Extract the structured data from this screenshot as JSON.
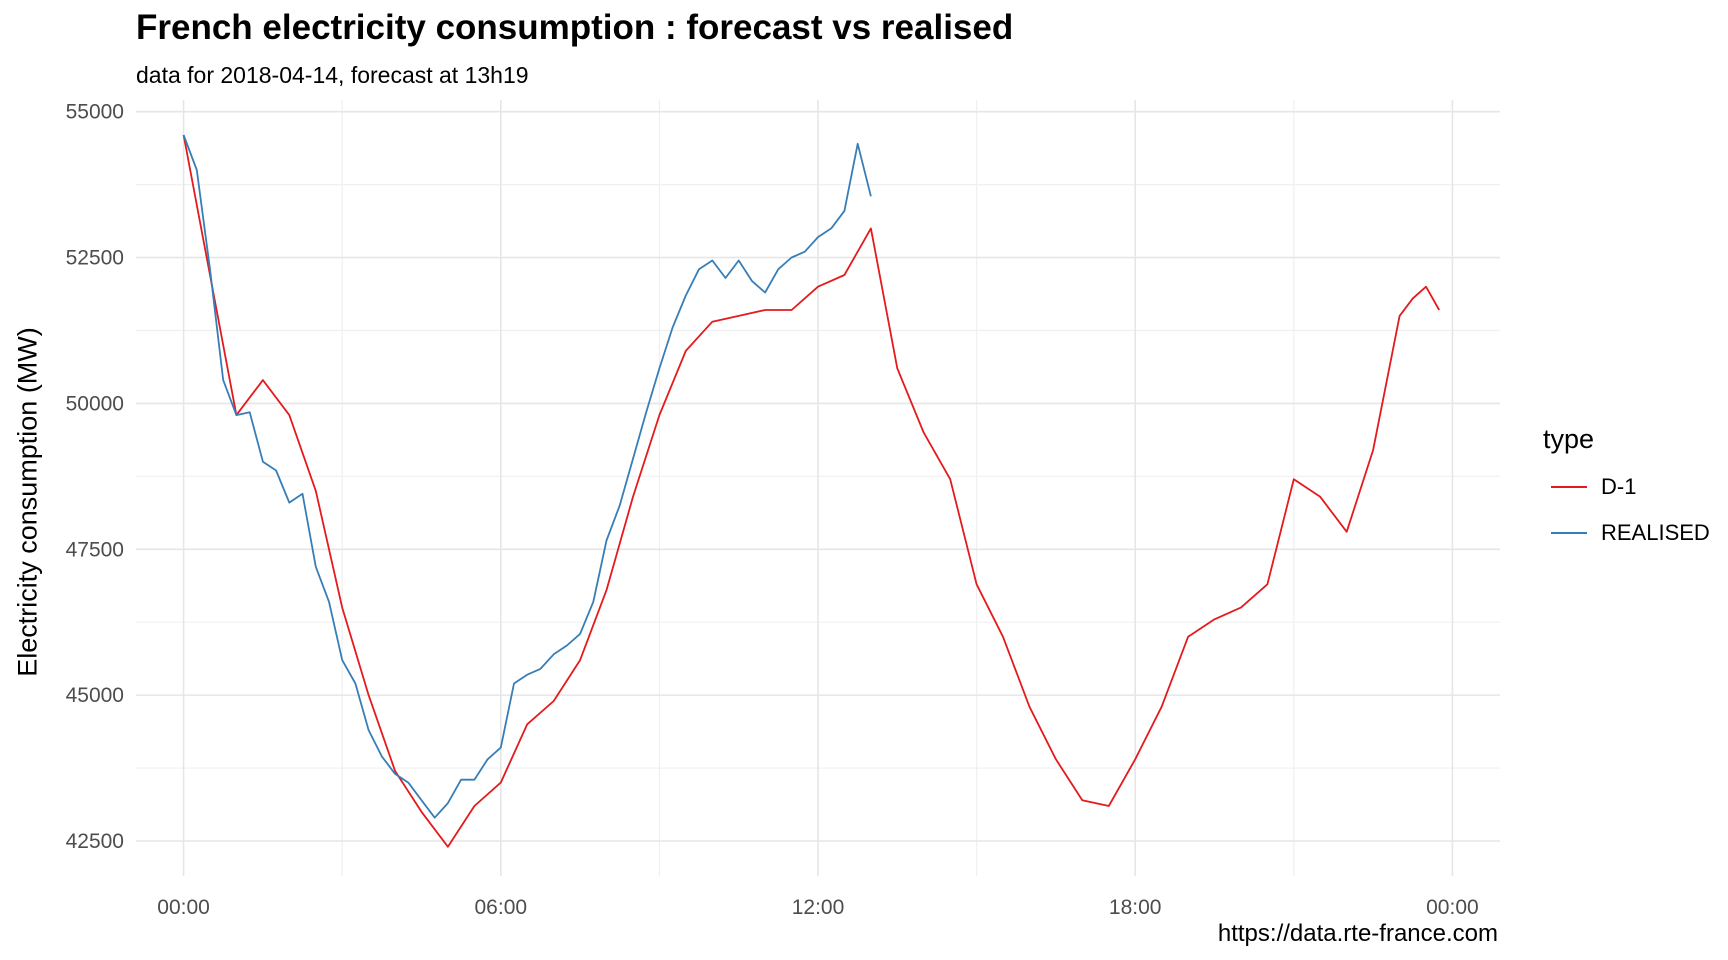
{
  "chart_data": {
    "type": "line",
    "title": "French electricity consumption : forecast vs realised",
    "subtitle": "data for 2018-04-14, forecast at 13h19",
    "caption": "https://data.rte-france.com",
    "xlabel": "",
    "ylabel": "Electricity consumption (MW)",
    "x_ticks": [
      "00:00",
      "06:00",
      "12:00",
      "18:00",
      "00:00"
    ],
    "y_ticks": [
      "42500",
      "45000",
      "47500",
      "50000",
      "52500",
      "55000"
    ],
    "xlim_hours": [
      -0.9,
      24.9
    ],
    "ylim": [
      41900,
      55200
    ],
    "grid": true,
    "legend": {
      "title": "type",
      "position": "right"
    },
    "series": [
      {
        "name": "D-1",
        "color": "#e41a1c",
        "x_hours": [
          0,
          1,
          1.5,
          2,
          2.5,
          3,
          3.5,
          4,
          4.5,
          5,
          5.5,
          6,
          6.5,
          7,
          7.5,
          8,
          8.5,
          9,
          9.5,
          10,
          10.5,
          11,
          11.5,
          12,
          12.5,
          13,
          13.5,
          14,
          14.5,
          15,
          15.5,
          16,
          16.5,
          17,
          17.5,
          18,
          18.5,
          19,
          19.5,
          20,
          20.5,
          21,
          21.5,
          22,
          22.5,
          23,
          23.25,
          23.5,
          23.75
        ],
        "values": [
          54600,
          49800,
          50400,
          49800,
          48500,
          46500,
          45000,
          43700,
          43000,
          42400,
          43100,
          43500,
          44500,
          44900,
          45600,
          46800,
          48400,
          49800,
          50900,
          51400,
          51500,
          51600,
          51600,
          52000,
          52200,
          53000,
          50600,
          49500,
          48700,
          46900,
          46000,
          44800,
          43900,
          43200,
          43100,
          43900,
          44800,
          46000,
          46300,
          46500,
          46900,
          48700,
          48400,
          47800,
          49200,
          51500,
          51800,
          52000,
          51600
        ]
      },
      {
        "name": "REALISED",
        "color": "#377eb8",
        "x_hours": [
          0,
          0.25,
          0.5,
          0.75,
          1,
          1.25,
          1.5,
          1.75,
          2,
          2.25,
          2.5,
          2.75,
          3,
          3.25,
          3.5,
          3.75,
          4,
          4.25,
          4.5,
          4.75,
          5,
          5.25,
          5.5,
          5.75,
          6,
          6.25,
          6.5,
          6.75,
          7,
          7.25,
          7.5,
          7.75,
          8,
          8.25,
          8.5,
          8.75,
          9,
          9.25,
          9.5,
          9.75,
          10,
          10.25,
          10.5,
          10.75,
          11,
          11.25,
          11.5,
          11.75,
          12,
          12.25,
          12.5,
          12.75,
          13
        ],
        "values": [
          54600,
          54000,
          52300,
          50400,
          49800,
          49850,
          49000,
          48850,
          48300,
          48450,
          47200,
          46600,
          45600,
          45200,
          44400,
          43950,
          43650,
          43500,
          43200,
          42900,
          43150,
          43550,
          43550,
          43900,
          44100,
          45200,
          45350,
          45450,
          45700,
          45850,
          46050,
          46600,
          47650,
          48250,
          49050,
          49850,
          50600,
          51300,
          51850,
          52300,
          52450,
          52150,
          52450,
          52100,
          51900,
          52300,
          52500,
          52600,
          52850,
          53000,
          53300,
          54450,
          53550
        ]
      }
    ]
  }
}
